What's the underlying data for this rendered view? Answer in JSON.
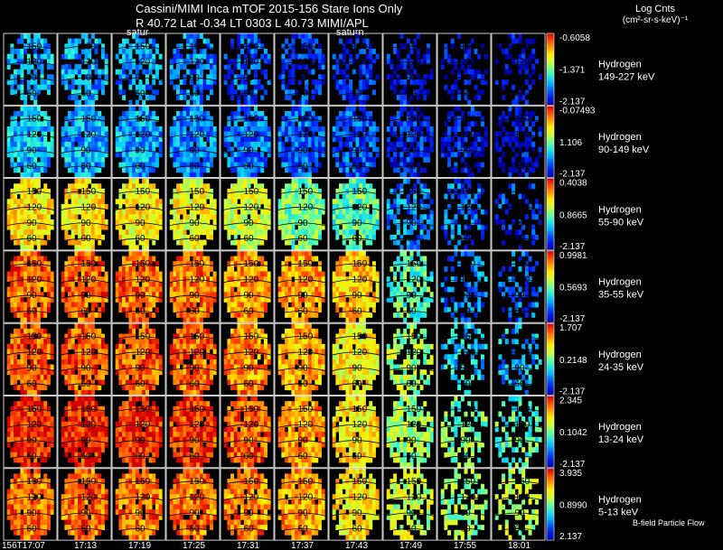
{
  "header": {
    "title": "Cassini/MIMI Inca mTOF  2015-156   Stare   Ions Only",
    "subtitle": "R        40.72 Lat -0.34 LT 0303 L         40.73  MIMI/APL",
    "colorbar_title": "Log Cnts",
    "colorbar_units": "(cm²-sr-s-keV)⁻¹",
    "saturn_labels": [
      "satur",
      "saturn"
    ]
  },
  "footer": {
    "time_labels": [
      "156T17:07",
      "17:13",
      "17:19",
      "17:25",
      "17:31",
      "17:37",
      "17:43",
      "17:49",
      "17:55",
      "18:01"
    ],
    "bfield_label": "B-field Particle Flow"
  },
  "chart_data": {
    "type": "heatmap",
    "title": "Cassini/MIMI Inca mTOF 2015-156 Stare Ions Only",
    "columns": [
      "156T17:07",
      "17:13",
      "17:19",
      "17:25",
      "17:31",
      "17:37",
      "17:43",
      "17:49",
      "17:55",
      "18:01"
    ],
    "contour_labels": [
      "150",
      "120",
      "90",
      "60"
    ],
    "rows": [
      {
        "species": "Hydrogen",
        "energy": "149-227 keV",
        "cmax": "-0.6058",
        "cmid": "-1.371",
        "cmin": "-2.137",
        "intensity": [
          0.3,
          0.3,
          0.28,
          0.25,
          0.18,
          0.15,
          0.12,
          0.1,
          0.08,
          0.06
        ],
        "sparsity": [
          0.35,
          0.3,
          0.3,
          0.35,
          0.35,
          0.4,
          0.45,
          0.55,
          0.65,
          0.7
        ]
      },
      {
        "species": "Hydrogen",
        "energy": "90-149 keV",
        "cmax": "-0.07493",
        "cmid": "1.106",
        "cmin": "-2.137",
        "intensity": [
          0.32,
          0.3,
          0.28,
          0.26,
          0.22,
          0.2,
          0.18,
          0.12,
          0.1,
          0.08
        ],
        "sparsity": [
          0.05,
          0.05,
          0.05,
          0.05,
          0.05,
          0.08,
          0.15,
          0.3,
          0.4,
          0.45
        ]
      },
      {
        "species": "Hydrogen",
        "energy": "55-90 keV",
        "cmax": "0.4038",
        "cmid": "0.8665",
        "cmin": "-2.137",
        "intensity": [
          0.7,
          0.7,
          0.68,
          0.66,
          0.62,
          0.5,
          0.45,
          0.25,
          0.2,
          0.15
        ],
        "sparsity": [
          0.05,
          0.05,
          0.05,
          0.05,
          0.05,
          0.05,
          0.08,
          0.4,
          0.55,
          0.65
        ]
      },
      {
        "species": "Hydrogen",
        "energy": "35-55 keV",
        "cmax": "0.9981",
        "cmid": "0.5693",
        "cmin": "-2.137",
        "intensity": [
          0.87,
          0.87,
          0.86,
          0.85,
          0.82,
          0.8,
          0.74,
          0.45,
          0.25,
          0.2
        ],
        "sparsity": [
          0.05,
          0.05,
          0.05,
          0.05,
          0.05,
          0.05,
          0.06,
          0.3,
          0.55,
          0.65
        ]
      },
      {
        "species": "Hydrogen",
        "energy": "24-35 keV",
        "cmax": "1.707",
        "cmid": "0.2148",
        "cmin": "-2.137",
        "intensity": [
          0.88,
          0.88,
          0.87,
          0.86,
          0.82,
          0.78,
          0.68,
          0.55,
          0.35,
          0.3
        ],
        "sparsity": [
          0.05,
          0.05,
          0.05,
          0.05,
          0.05,
          0.05,
          0.06,
          0.35,
          0.55,
          0.6
        ]
      },
      {
        "species": "Hydrogen",
        "energy": "13-24 keV",
        "cmax": "2.345",
        "cmid": "0.1042",
        "cmin": "-2.137",
        "intensity": [
          0.95,
          0.95,
          0.94,
          0.93,
          0.88,
          0.8,
          0.7,
          0.55,
          0.5,
          0.45
        ],
        "sparsity": [
          0.05,
          0.05,
          0.05,
          0.05,
          0.05,
          0.05,
          0.05,
          0.2,
          0.4,
          0.45
        ]
      },
      {
        "species": "Hydrogen",
        "energy": "5-13 keV",
        "cmax": "3.935",
        "cmid": "0.8990",
        "cmin": "2.137",
        "intensity": [
          0.86,
          0.86,
          0.85,
          0.85,
          0.83,
          0.8,
          0.7,
          0.6,
          0.55,
          0.6
        ],
        "sparsity": [
          0.05,
          0.05,
          0.05,
          0.05,
          0.05,
          0.05,
          0.08,
          0.35,
          0.5,
          0.5
        ]
      }
    ]
  }
}
